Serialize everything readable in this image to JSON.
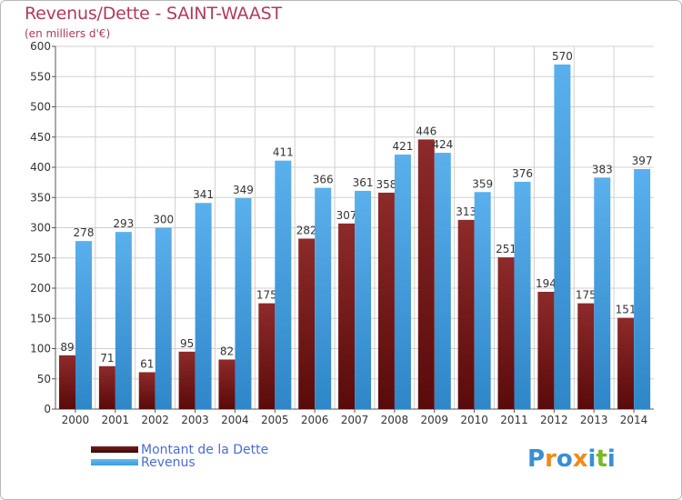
{
  "title": "Revenus/Dette - SAINT-WAAST",
  "subtitle": "(en milliers d'€)",
  "legend": [
    {
      "label": "Montant de la Dette",
      "color": "#7a1c1c"
    },
    {
      "label": "Revenus",
      "color": "#3a9de0"
    }
  ],
  "logo": {
    "text": "Proxiti",
    "colors": [
      "#3a8fd6",
      "#f08a1c",
      "#3a8fd6",
      "#f08a1c",
      "#3a8fd6",
      "#78b82a",
      "#3a8fd6"
    ]
  },
  "chart_data": {
    "type": "bar",
    "categories": [
      "2000",
      "2001",
      "2002",
      "2003",
      "2004",
      "2005",
      "2006",
      "2007",
      "2008",
      "2009",
      "2010",
      "2011",
      "2012",
      "2013",
      "2014"
    ],
    "series": [
      {
        "name": "Montant de la Dette",
        "color": "#7a1c1c",
        "values": [
          89,
          71,
          61,
          95,
          82,
          175,
          282,
          307,
          358,
          446,
          313,
          251,
          194,
          175,
          151
        ],
        "labels": [
          "89",
          "71",
          "61",
          "95",
          "82",
          "175",
          "282",
          "307",
          "358",
          "446",
          "313",
          "251",
          "194",
          "175",
          "151"
        ]
      },
      {
        "name": "Revenus",
        "color": "#3a9de0",
        "values": [
          278,
          293,
          300,
          341,
          349,
          411,
          366,
          361,
          421,
          424,
          359,
          376,
          570,
          383,
          397
        ],
        "labels": [
          "278",
          "293",
          "300",
          "341",
          "349",
          "411",
          "366",
          "361",
          "421",
          "424",
          "359",
          "376",
          "570",
          "383",
          "397"
        ]
      }
    ],
    "ylim": [
      0,
      600
    ],
    "yticks": [
      "0",
      "50",
      "100",
      "150",
      "200",
      "250",
      "300",
      "350",
      "400",
      "450",
      "500",
      "550",
      "600"
    ],
    "grid": true
  }
}
